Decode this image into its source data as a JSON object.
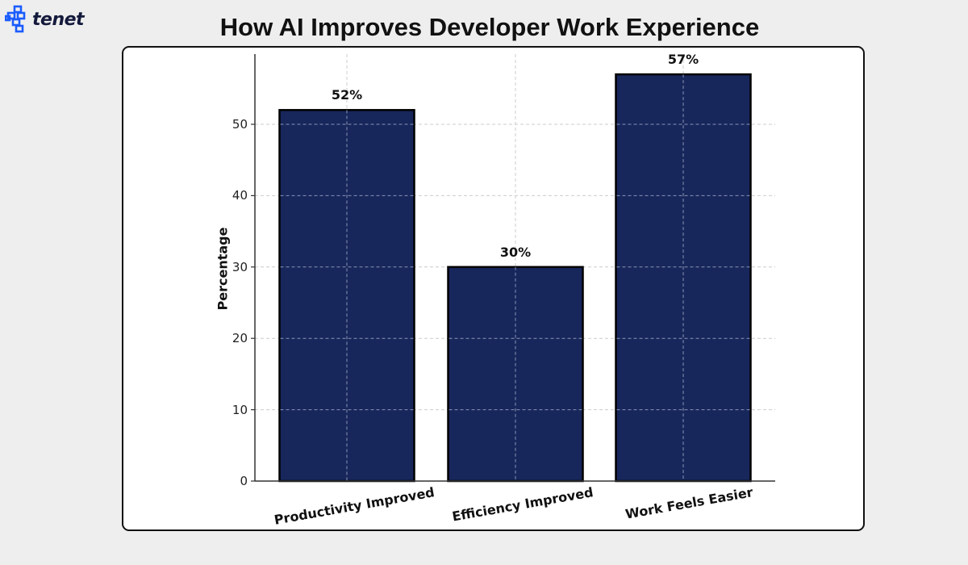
{
  "brand": {
    "name": "tenet",
    "icon": "tenet-logo-icon",
    "color": "#1a5cff"
  },
  "page": {
    "title": "How AI Improves Developer Work Experience"
  },
  "colors": {
    "bar_fill": "#17275c",
    "bar_edge": "#000000",
    "grid": "#cccccc",
    "background": "#eeeeee",
    "card": "#ffffff"
  },
  "chart_data": {
    "type": "bar",
    "title": "How AI Improves Developer Work Experience",
    "xlabel": "",
    "ylabel": "Percentage",
    "categories": [
      "Productivity Improved",
      "Efficiency Improved",
      "Work Feels Easier"
    ],
    "values": [
      52,
      30,
      57
    ],
    "data_labels": [
      "52%",
      "30%",
      "57%"
    ],
    "yticks": [
      0,
      10,
      20,
      30,
      40,
      50
    ],
    "ylim": [
      0,
      59.85
    ],
    "grid": true,
    "grid_style": "dashed",
    "legend": null,
    "xtick_rotation": 10
  }
}
